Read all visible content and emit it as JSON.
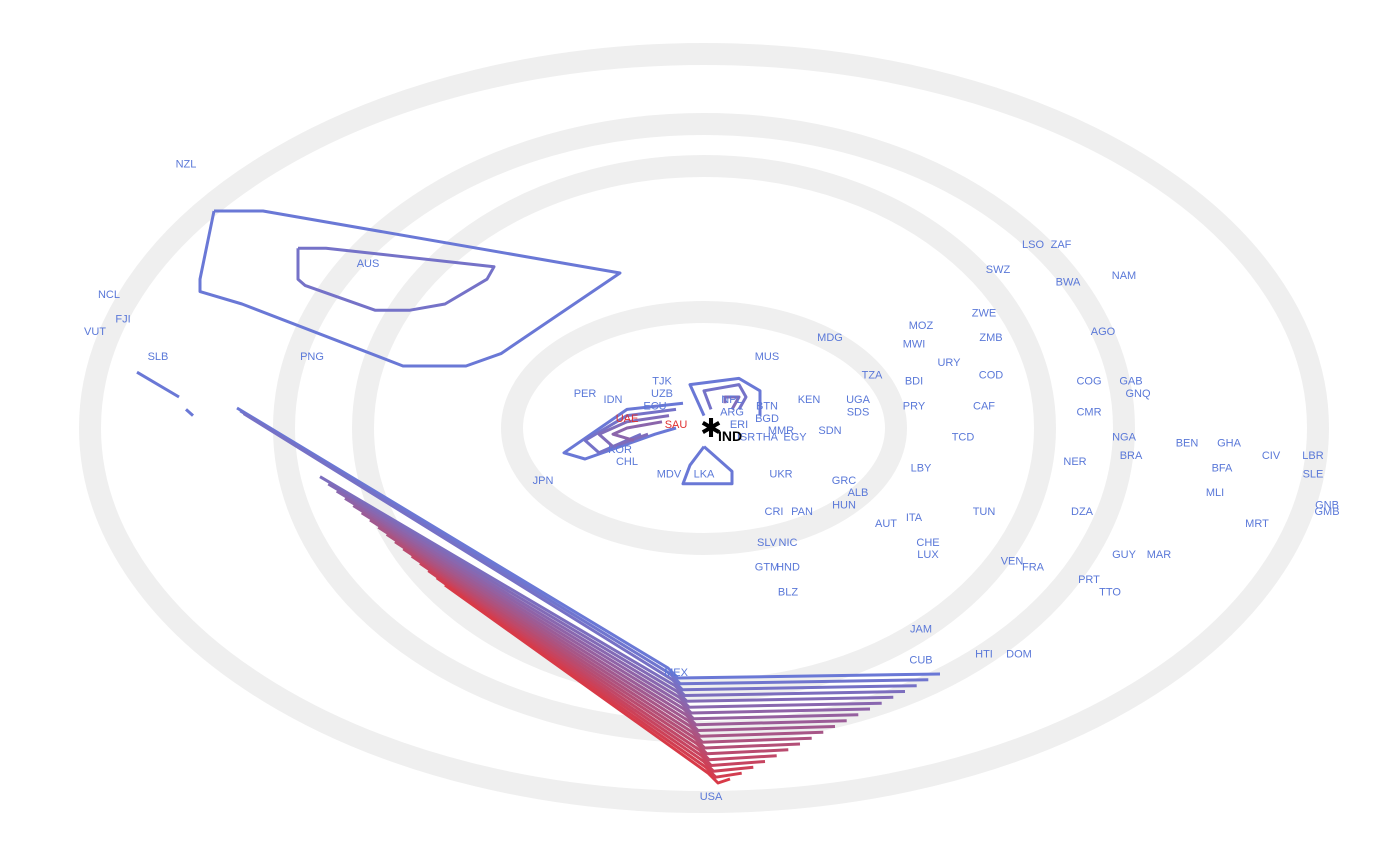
{
  "chart_data": {
    "type": "scatter",
    "subtype": "concentric-ring similarity map with density contours",
    "center": {
      "label": "IND",
      "marker": "asterisk",
      "color": "#000000"
    },
    "rings": {
      "count": 4,
      "color": "#efefef"
    },
    "colors": {
      "default_label": "#5a78d8",
      "highlight_label": "#e03030",
      "contour_low": "#6a78d6",
      "contour_high": "#d83a48"
    },
    "labels": [
      {
        "name": "NZL",
        "x": -0.74,
        "y": -0.42
      },
      {
        "name": "AUS",
        "x": -0.48,
        "y": -0.26
      },
      {
        "name": "NCL",
        "x": -0.85,
        "y": -0.21
      },
      {
        "name": "FJI",
        "x": -0.83,
        "y": -0.17
      },
      {
        "name": "VUT",
        "x": -0.87,
        "y": -0.15
      },
      {
        "name": "SLB",
        "x": -0.78,
        "y": -0.11
      },
      {
        "name": "PNG",
        "x": -0.56,
        "y": -0.11
      },
      {
        "name": "JPN",
        "x": -0.23,
        "y": 0.09
      },
      {
        "name": "PER",
        "x": -0.17,
        "y": -0.05
      },
      {
        "name": "IDN",
        "x": -0.13,
        "y": -0.04
      },
      {
        "name": "TJK",
        "x": -0.06,
        "y": -0.07
      },
      {
        "name": "UZB",
        "x": -0.06,
        "y": -0.05
      },
      {
        "name": "ECU",
        "x": -0.07,
        "y": -0.03
      },
      {
        "name": "UAE",
        "x": -0.11,
        "y": -0.01,
        "highlight": true
      },
      {
        "name": "SAU",
        "x": -0.04,
        "y": -0.0,
        "highlight": true
      },
      {
        "name": "KOR",
        "x": -0.12,
        "y": 0.04
      },
      {
        "name": "CHL",
        "x": -0.11,
        "y": 0.06
      },
      {
        "name": "MDV",
        "x": -0.05,
        "y": 0.08
      },
      {
        "name": "LKA",
        "x": -0.0,
        "y": 0.08
      },
      {
        "name": "NPL",
        "x": 0.04,
        "y": -0.04
      },
      {
        "name": "BTN",
        "x": 0.09,
        "y": -0.03
      },
      {
        "name": "ARG",
        "x": 0.04,
        "y": -0.02
      },
      {
        "name": "BGD",
        "x": 0.09,
        "y": -0.01
      },
      {
        "name": "ERI",
        "x": 0.05,
        "y": 0.0
      },
      {
        "name": "MMR",
        "x": 0.11,
        "y": 0.01
      },
      {
        "name": "ISR",
        "x": 0.06,
        "y": 0.02
      },
      {
        "name": "THA",
        "x": 0.09,
        "y": 0.02
      },
      {
        "name": "EGY",
        "x": 0.13,
        "y": 0.02
      },
      {
        "name": "KEN",
        "x": 0.15,
        "y": -0.04
      },
      {
        "name": "SDN",
        "x": 0.18,
        "y": 0.01
      },
      {
        "name": "UGA",
        "x": 0.22,
        "y": -0.04
      },
      {
        "name": "SDS",
        "x": 0.22,
        "y": -0.02
      },
      {
        "name": "MUS",
        "x": 0.09,
        "y": -0.11
      },
      {
        "name": "MDG",
        "x": 0.18,
        "y": -0.14
      },
      {
        "name": "TZA",
        "x": 0.24,
        "y": -0.08
      },
      {
        "name": "BDI",
        "x": 0.3,
        "y": -0.07
      },
      {
        "name": "PRY",
        "x": 0.3,
        "y": -0.03
      },
      {
        "name": "UKR",
        "x": 0.11,
        "y": 0.08
      },
      {
        "name": "GRC",
        "x": 0.2,
        "y": 0.09
      },
      {
        "name": "ALB",
        "x": 0.22,
        "y": 0.11
      },
      {
        "name": "CRI",
        "x": 0.1,
        "y": 0.14
      },
      {
        "name": "PAN",
        "x": 0.14,
        "y": 0.14
      },
      {
        "name": "HUN",
        "x": 0.2,
        "y": 0.13
      },
      {
        "name": "AUT",
        "x": 0.26,
        "y": 0.16
      },
      {
        "name": "ITA",
        "x": 0.3,
        "y": 0.15
      },
      {
        "name": "SLV",
        "x": 0.09,
        "y": 0.19
      },
      {
        "name": "NIC",
        "x": 0.12,
        "y": 0.19
      },
      {
        "name": "GTM",
        "x": 0.09,
        "y": 0.23
      },
      {
        "name": "HND",
        "x": 0.12,
        "y": 0.23
      },
      {
        "name": "BLZ",
        "x": 0.12,
        "y": 0.27
      },
      {
        "name": "CHE",
        "x": 0.32,
        "y": 0.19
      },
      {
        "name": "LUX",
        "x": 0.32,
        "y": 0.21
      },
      {
        "name": "TUN",
        "x": 0.4,
        "y": 0.14
      },
      {
        "name": "LBY",
        "x": 0.31,
        "y": 0.07
      },
      {
        "name": "TCD",
        "x": 0.37,
        "y": 0.02
      },
      {
        "name": "CAF",
        "x": 0.4,
        "y": -0.03
      },
      {
        "name": "COD",
        "x": 0.41,
        "y": -0.08
      },
      {
        "name": "URY",
        "x": 0.35,
        "y": -0.1
      },
      {
        "name": "MWI",
        "x": 0.3,
        "y": -0.13
      },
      {
        "name": "MOZ",
        "x": 0.31,
        "y": -0.16
      },
      {
        "name": "ZMB",
        "x": 0.41,
        "y": -0.14
      },
      {
        "name": "ZWE",
        "x": 0.4,
        "y": -0.18
      },
      {
        "name": "SWZ",
        "x": 0.42,
        "y": -0.25
      },
      {
        "name": "LSO",
        "x": 0.47,
        "y": -0.29
      },
      {
        "name": "ZAF",
        "x": 0.51,
        "y": -0.29
      },
      {
        "name": "BWA",
        "x": 0.52,
        "y": -0.23
      },
      {
        "name": "NAM",
        "x": 0.6,
        "y": -0.24
      },
      {
        "name": "AGO",
        "x": 0.57,
        "y": -0.15
      },
      {
        "name": "COG",
        "x": 0.55,
        "y": -0.07
      },
      {
        "name": "GAB",
        "x": 0.61,
        "y": -0.07
      },
      {
        "name": "GNQ",
        "x": 0.62,
        "y": -0.05
      },
      {
        "name": "CMR",
        "x": 0.55,
        "y": -0.02
      },
      {
        "name": "NGA",
        "x": 0.6,
        "y": 0.02
      },
      {
        "name": "NER",
        "x": 0.53,
        "y": 0.06
      },
      {
        "name": "BRA",
        "x": 0.61,
        "y": 0.05
      },
      {
        "name": "BEN",
        "x": 0.69,
        "y": 0.03
      },
      {
        "name": "GHA",
        "x": 0.75,
        "y": 0.03
      },
      {
        "name": "CIV",
        "x": 0.81,
        "y": 0.05
      },
      {
        "name": "LBR",
        "x": 0.87,
        "y": 0.05
      },
      {
        "name": "BFA",
        "x": 0.74,
        "y": 0.07
      },
      {
        "name": "SLE",
        "x": 0.87,
        "y": 0.08
      },
      {
        "name": "MLI",
        "x": 0.73,
        "y": 0.11
      },
      {
        "name": "GNB",
        "x": 0.89,
        "y": 0.13
      },
      {
        "name": "GMB",
        "x": 0.89,
        "y": 0.14
      },
      {
        "name": "MRT",
        "x": 0.79,
        "y": 0.16
      },
      {
        "name": "DZA",
        "x": 0.54,
        "y": 0.14
      },
      {
        "name": "GUY",
        "x": 0.6,
        "y": 0.21
      },
      {
        "name": "MAR",
        "x": 0.65,
        "y": 0.21
      },
      {
        "name": "VEN",
        "x": 0.44,
        "y": 0.22
      },
      {
        "name": "FRA",
        "x": 0.47,
        "y": 0.23
      },
      {
        "name": "PRT",
        "x": 0.55,
        "y": 0.25
      },
      {
        "name": "TTO",
        "x": 0.58,
        "y": 0.27
      },
      {
        "name": "JAM",
        "x": 0.31,
        "y": 0.33
      },
      {
        "name": "CUB",
        "x": 0.31,
        "y": 0.38
      },
      {
        "name": "HTI",
        "x": 0.4,
        "y": 0.37
      },
      {
        "name": "DOM",
        "x": 0.45,
        "y": 0.37
      },
      {
        "name": "MEX",
        "x": -0.04,
        "y": 0.4
      },
      {
        "name": "USA",
        "x": 0.01,
        "y": 0.6
      }
    ],
    "contours": [
      {
        "level": 0.0,
        "points": [
          [
            -0.7,
            -0.35
          ],
          [
            -0.63,
            -0.35
          ],
          [
            -0.12,
            -0.25
          ],
          [
            -0.29,
            -0.12
          ],
          [
            -0.34,
            -0.1
          ],
          [
            -0.43,
            -0.1
          ],
          [
            -0.66,
            -0.2
          ],
          [
            -0.72,
            -0.22
          ],
          [
            -0.72,
            -0.24
          ],
          [
            -0.7,
            -0.35
          ]
        ]
      },
      {
        "level": 0.1,
        "points": [
          [
            -0.58,
            -0.29
          ],
          [
            -0.54,
            -0.29
          ],
          [
            -0.3,
            -0.26
          ],
          [
            -0.31,
            -0.24
          ],
          [
            -0.37,
            -0.2
          ],
          [
            -0.42,
            -0.19
          ],
          [
            -0.47,
            -0.19
          ],
          [
            -0.57,
            -0.23
          ],
          [
            -0.58,
            -0.24
          ],
          [
            -0.58,
            -0.29
          ]
        ]
      },
      {
        "level": 0.0,
        "points": [
          [
            -0.03,
            -0.04
          ],
          [
            -0.11,
            -0.03
          ],
          [
            -0.2,
            0.04
          ],
          [
            -0.17,
            0.05
          ],
          [
            -0.07,
            0.01
          ],
          [
            -0.04,
            -0.0
          ]
        ]
      },
      {
        "level": 0.1,
        "points": [
          [
            -0.04,
            -0.03
          ],
          [
            -0.11,
            -0.02
          ],
          [
            -0.17,
            0.02
          ],
          [
            -0.15,
            0.04
          ],
          [
            -0.09,
            0.01
          ]
        ]
      },
      {
        "level": 0.2,
        "points": [
          [
            -0.05,
            -0.02
          ],
          [
            -0.11,
            -0.01
          ],
          [
            -0.15,
            0.01
          ],
          [
            -0.13,
            0.03
          ],
          [
            -0.08,
            0.01
          ]
        ]
      },
      {
        "level": 0.3,
        "points": [
          [
            -0.06,
            -0.01
          ],
          [
            -0.11,
            -0.0
          ],
          [
            -0.13,
            0.01
          ],
          [
            -0.1,
            0.02
          ]
        ]
      },
      {
        "level": 0.0,
        "points": [
          [
            -0.0,
            -0.02
          ],
          [
            -0.02,
            -0.07
          ],
          [
            0.05,
            -0.08
          ],
          [
            0.08,
            -0.06
          ],
          [
            0.08,
            -0.02
          ]
        ]
      },
      {
        "level": 0.1,
        "points": [
          [
            0.01,
            -0.03
          ],
          [
            0.0,
            -0.06
          ],
          [
            0.05,
            -0.07
          ],
          [
            0.06,
            -0.05
          ],
          [
            0.05,
            -0.03
          ]
        ]
      },
      {
        "level": 0.2,
        "points": [
          [
            0.03,
            -0.04
          ],
          [
            0.03,
            -0.05
          ],
          [
            0.05,
            -0.05
          ],
          [
            0.04,
            -0.03
          ]
        ]
      },
      {
        "level": 0.0,
        "points": [
          [
            -0.0,
            0.03
          ],
          [
            -0.02,
            0.06
          ],
          [
            -0.03,
            0.09
          ],
          [
            0.04,
            0.09
          ],
          [
            0.04,
            0.07
          ],
          [
            0.01,
            0.04
          ],
          [
            -0.0,
            0.03
          ]
        ]
      }
    ],
    "fan": {
      "line_count": 19,
      "upper_left_segments": [
        [
          [
            -0.81,
            -0.09
          ],
          [
            -0.75,
            -0.05
          ]
        ],
        [
          [
            -0.74,
            -0.03
          ],
          [
            -0.73,
            -0.02
          ]
        ]
      ],
      "mid_segments": [
        [
          [
            -0.74,
            -0.02
          ],
          [
            -0.54,
            0.11
          ]
        ],
        [
          [
            -0.68,
            0.05
          ],
          [
            -0.52,
            0.15
          ]
        ],
        [
          [
            -0.6,
            0.1
          ],
          [
            -0.41,
            0.22
          ]
        ]
      ]
    }
  }
}
